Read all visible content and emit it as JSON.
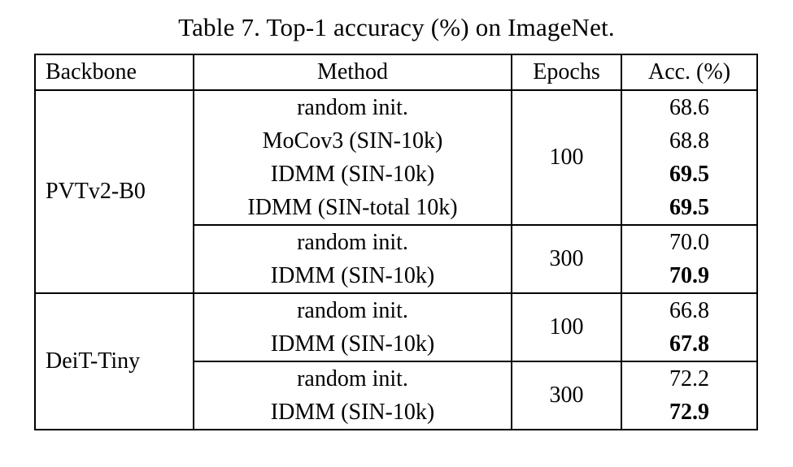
{
  "title": "Table 7. Top-1 accuracy (%) on ImageNet.",
  "table": {
    "headers": {
      "backbone": "Backbone",
      "method": "Method",
      "epochs": "Epochs",
      "acc": "Acc. (%)"
    },
    "backbones": [
      {
        "label": "PVTv2-B0"
      },
      {
        "label": "DeiT-Tiny"
      }
    ],
    "epochs": [
      {
        "value": "100"
      },
      {
        "value": "300"
      },
      {
        "value": "100"
      },
      {
        "value": "300"
      }
    ],
    "rows": [
      {
        "method": "random init.",
        "acc": "68.6",
        "acc_class": "acc"
      },
      {
        "method": "MoCov3 (SIN-10k)",
        "acc": "68.8",
        "acc_class": "acc"
      },
      {
        "method": "IDMM (SIN-10k)",
        "acc": "69.5",
        "acc_class": "acc best"
      },
      {
        "method": "IDMM (SIN-total 10k)",
        "acc": "69.5",
        "acc_class": "acc best"
      },
      {
        "method": "random init.",
        "acc": "70.0",
        "acc_class": "acc"
      },
      {
        "method": "IDMM (SIN-10k)",
        "acc": "70.9",
        "acc_class": "acc best"
      },
      {
        "method": "random init.",
        "acc": "66.8",
        "acc_class": "acc"
      },
      {
        "method": "IDMM (SIN-10k)",
        "acc": "67.8",
        "acc_class": "acc best"
      },
      {
        "method": "random init.",
        "acc": "72.2",
        "acc_class": "acc"
      },
      {
        "method": "IDMM (SIN-10k)",
        "acc": "72.9",
        "acc_class": "acc best"
      }
    ]
  }
}
